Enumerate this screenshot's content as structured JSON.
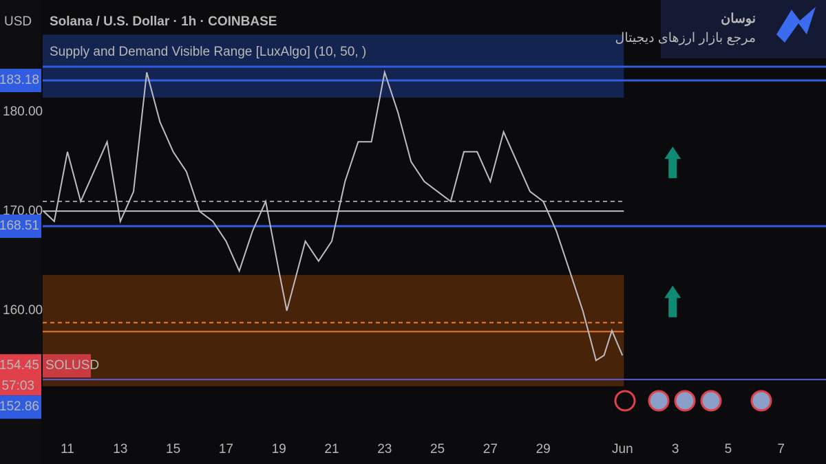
{
  "chart_data": {
    "type": "line",
    "title": "Solana / U.S. Dollar · 1h · COINBASE",
    "currency": "USD",
    "indicator": "Supply and Demand Visible Range [LuxAlgo] (10, 50, )",
    "symbol": "SOLUSD",
    "countdown": "57:03",
    "brand": {
      "name": "نوسان",
      "tagline": "مرجع بازار ارزهای دیجیتال"
    },
    "color": "#c0bcc4",
    "x": [
      10.1,
      10.5,
      11,
      11.5,
      12,
      12.5,
      13,
      13.5,
      14,
      14.5,
      15,
      15.5,
      16,
      16.5,
      17,
      17.5,
      18,
      18.5,
      19,
      19.3,
      19.6,
      20,
      20.5,
      21,
      21.5,
      22,
      22.5,
      23,
      23.5,
      24,
      24.5,
      25,
      25.5,
      26,
      26.5,
      27,
      27.5,
      28,
      28.5,
      29,
      29.5,
      30,
      30.5,
      30.8,
      31,
      31.3,
      31.6,
      32
    ],
    "values": [
      170,
      169,
      176,
      171,
      174,
      177,
      169,
      172,
      184,
      179,
      176,
      174,
      170,
      169,
      167,
      164,
      168,
      171,
      164,
      160,
      163,
      167,
      165,
      167,
      173,
      177,
      177,
      184,
      180,
      175,
      173,
      172,
      171,
      176,
      176,
      173,
      178,
      175,
      172,
      171,
      168,
      164,
      160,
      157,
      155,
      155.5,
      158,
      155.5
    ],
    "xlim": [
      10.01,
      39.7
    ],
    "ylim": [
      148.72,
      191.28
    ],
    "xticks": [
      11,
      13,
      15,
      17,
      19,
      21,
      23,
      25,
      27,
      29,
      {
        "value": 32,
        "label": "Jun"
      },
      {
        "value": 34,
        "label": "3"
      },
      {
        "value": 36,
        "label": "5"
      },
      {
        "value": 38,
        "label": "7"
      }
    ],
    "yticks": [
      {
        "value": 160,
        "label": "160.00"
      },
      {
        "value": 170,
        "label": "170.00"
      },
      {
        "value": 180,
        "label": "180.00"
      }
    ],
    "zones": [
      {
        "top": 187.8,
        "bottom": 181.45,
        "color": "#1e3a8a"
      },
      {
        "top": 163.6,
        "bottom": 152.4,
        "color": "#7a3a08"
      }
    ],
    "levels": [
      {
        "value": 184.57,
        "color": "#2f5ce0"
      },
      {
        "value": 183.18,
        "color": "#2f5ce0"
      },
      {
        "value": 171.0,
        "color": "#9a9a9a"
      },
      {
        "value": 170.03,
        "color": "#bdbdbd"
      },
      {
        "value": 168.51,
        "color": "#2f5ce0"
      },
      {
        "value": 158.8,
        "color": "#f07a2a"
      },
      {
        "value": 157.9,
        "color": "#f07a2a"
      },
      {
        "value": 153.07,
        "color": "#5a5ae0"
      }
    ],
    "price_labels": [
      {
        "value": 183.18,
        "color": "#2f5ce0"
      },
      {
        "value": 168.51,
        "color": "#2f5ce0"
      },
      {
        "value": 154.45,
        "color": "#e0404a"
      },
      {
        "value": 152.86,
        "color": "#2f5ce0"
      }
    ],
    "arrows": [
      175,
      161
    ]
  }
}
